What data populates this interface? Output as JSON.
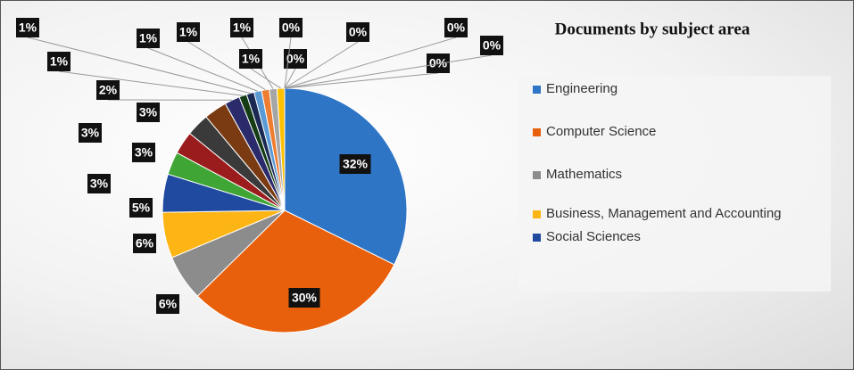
{
  "chart_data": {
    "type": "pie",
    "title": "Documents by subject area",
    "categories": [
      "Engineering",
      "Computer Science",
      "Mathematics",
      "Business, Management and Accounting",
      "Social Sciences",
      null,
      null,
      null,
      null,
      null,
      null,
      null,
      null,
      null,
      null,
      null,
      null,
      null,
      null,
      null,
      null,
      null
    ],
    "values": [
      32,
      30,
      6,
      6,
      5,
      3,
      3,
      3,
      3,
      2,
      1,
      1,
      1,
      1,
      1,
      1,
      0,
      0,
      0,
      0,
      0,
      0
    ],
    "value_labels": [
      "32%",
      "30%",
      "6%",
      "6%",
      "5%",
      "3%",
      "3%",
      "3%",
      "3%",
      "2%",
      "1%",
      "1%",
      "1%",
      "1%",
      "1%",
      "1%",
      "0%",
      "0%",
      "0%",
      "0%",
      "0%",
      "0%"
    ],
    "colors": [
      "#2e75c6",
      "#e8600c",
      "#8c8c8c",
      "#fdb515",
      "#1f4aa0",
      "#3fa535",
      "#9b1c1c",
      "#3a3a3a",
      "#7a3b12",
      "#2b2b6b",
      "#153d15",
      "#1a2a55",
      "#5b9bd5",
      "#ed7d31",
      "#a5a5a5",
      "#ffc000",
      "#4472c4",
      "#70ad47",
      "#264478",
      "#9e480e",
      "#636363",
      "#997300"
    ]
  }
}
